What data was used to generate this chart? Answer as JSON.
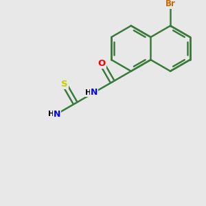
{
  "bg_color": "#e8e8e8",
  "bond_color": "#3a7a3a",
  "atom_colors": {
    "Br": "#cc6600",
    "O": "#ff0000",
    "N": "#0000ff",
    "S": "#cccc00",
    "Cl": "#00aa00",
    "C": "#3a7a3a"
  },
  "bond_width": 1.8,
  "font_size": 9,
  "figsize": [
    3.0,
    3.0
  ],
  "dpi": 100
}
